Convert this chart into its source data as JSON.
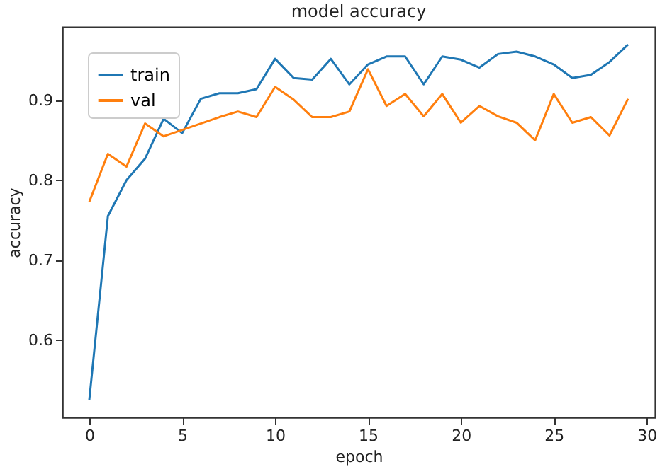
{
  "chart_data": {
    "type": "line",
    "title": "model accuracy",
    "xlabel": "epoch",
    "ylabel": "accuracy",
    "x": [
      0,
      1,
      2,
      3,
      4,
      5,
      6,
      7,
      8,
      9,
      10,
      11,
      12,
      13,
      14,
      15,
      16,
      17,
      18,
      19,
      20,
      21,
      22,
      23,
      24,
      25,
      26,
      27,
      28,
      29
    ],
    "series": [
      {
        "name": "train",
        "color": "#1f77b4",
        "values": [
          0.525,
          0.755,
          0.8,
          0.827,
          0.877,
          0.859,
          0.902,
          0.909,
          0.909,
          0.914,
          0.952,
          0.928,
          0.926,
          0.952,
          0.92,
          0.945,
          0.955,
          0.955,
          0.92,
          0.955,
          0.951,
          0.941,
          0.958,
          0.961,
          0.955,
          0.945,
          0.928,
          0.932,
          0.948,
          0.97
        ]
      },
      {
        "name": "val",
        "color": "#ff7f0e",
        "values": [
          0.773,
          0.833,
          0.817,
          0.871,
          0.855,
          0.863,
          0.871,
          0.879,
          0.886,
          0.879,
          0.917,
          0.901,
          0.879,
          0.879,
          0.886,
          0.939,
          0.893,
          0.908,
          0.88,
          0.908,
          0.872,
          0.893,
          0.88,
          0.872,
          0.85,
          0.908,
          0.872,
          0.879,
          0.856,
          0.902
        ]
      }
    ],
    "xlim": [
      -1.45,
      30.45
    ],
    "xticks": [
      0,
      5,
      10,
      15,
      20,
      25,
      30
    ],
    "ylim": [
      0.503,
      0.992
    ],
    "yticks": [
      0.6,
      0.7,
      0.8,
      0.9
    ],
    "grid": false,
    "legend": "top left",
    "marker": "none",
    "line_style": "solid"
  }
}
